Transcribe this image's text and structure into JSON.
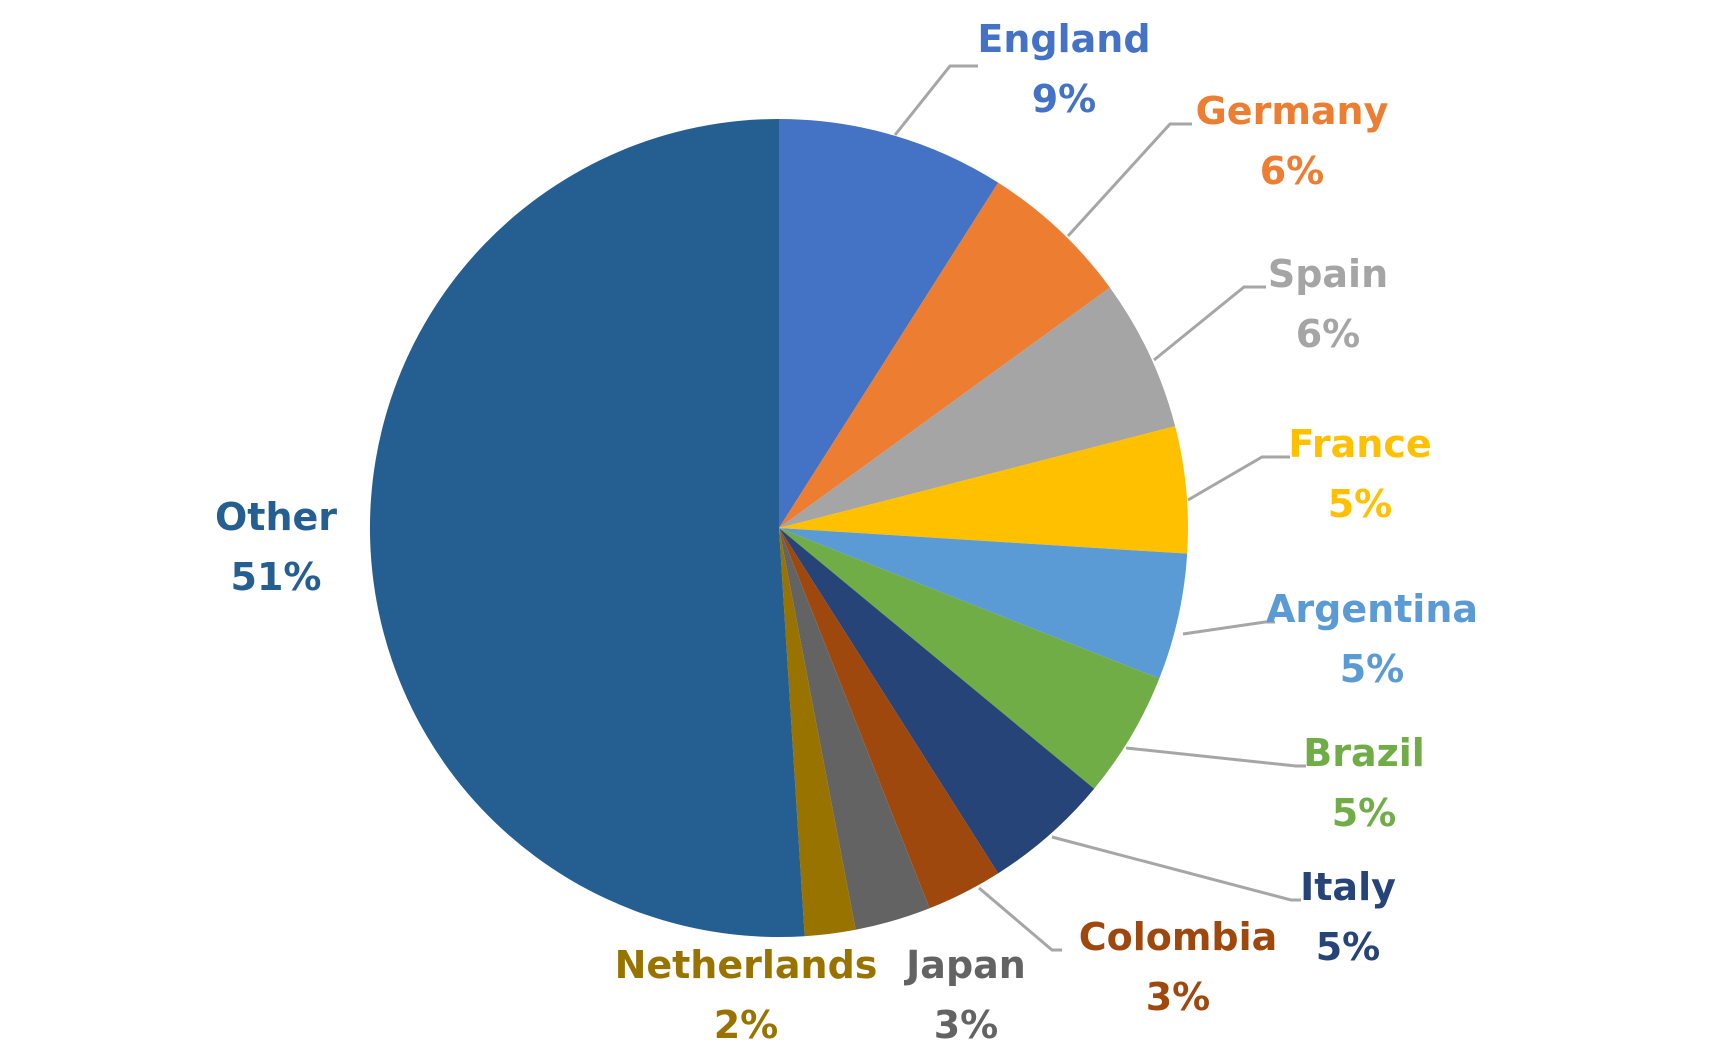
{
  "chart_data": {
    "type": "pie",
    "title": "",
    "start_angle_deg": 0,
    "direction": "clockwise",
    "slices": [
      {
        "label": "England",
        "value": 9,
        "value_label": "9%",
        "color": "#4472C4"
      },
      {
        "label": "Germany",
        "value": 6,
        "value_label": "6%",
        "color": "#ED7D31"
      },
      {
        "label": "Spain",
        "value": 6,
        "value_label": "6%",
        "color": "#A5A5A5"
      },
      {
        "label": "France",
        "value": 5,
        "value_label": "5%",
        "color": "#FFC000"
      },
      {
        "label": "Argentina",
        "value": 5,
        "value_label": "5%",
        "color": "#5B9BD5"
      },
      {
        "label": "Brazil",
        "value": 5,
        "value_label": "5%",
        "color": "#70AD47"
      },
      {
        "label": "Italy",
        "value": 5,
        "value_label": "5%",
        "color": "#264478"
      },
      {
        "label": "Colombia",
        "value": 3,
        "value_label": "3%",
        "color": "#9E480E"
      },
      {
        "label": "Japan",
        "value": 3,
        "value_label": "3%",
        "color": "#636363"
      },
      {
        "label": "Netherlands",
        "value": 2,
        "value_label": "2%",
        "color": "#997300"
      },
      {
        "label": "Other",
        "value": 51,
        "value_label": "51%",
        "color": "#255E91"
      }
    ],
    "leader_line_color": "#A6A6A6"
  }
}
